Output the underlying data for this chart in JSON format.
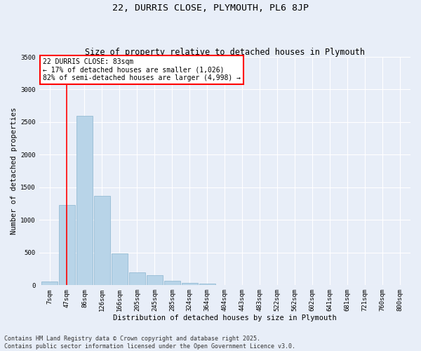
{
  "title_line1": "22, DURRIS CLOSE, PLYMOUTH, PL6 8JP",
  "title_line2": "Size of property relative to detached houses in Plymouth",
  "xlabel": "Distribution of detached houses by size in Plymouth",
  "ylabel": "Number of detached properties",
  "categories": [
    "7sqm",
    "47sqm",
    "86sqm",
    "126sqm",
    "166sqm",
    "205sqm",
    "245sqm",
    "285sqm",
    "324sqm",
    "364sqm",
    "404sqm",
    "443sqm",
    "483sqm",
    "522sqm",
    "562sqm",
    "602sqm",
    "641sqm",
    "681sqm",
    "721sqm",
    "760sqm",
    "800sqm"
  ],
  "values": [
    60,
    1230,
    2600,
    1370,
    490,
    200,
    155,
    70,
    40,
    20,
    5,
    0,
    0,
    0,
    0,
    0,
    0,
    0,
    0,
    0,
    0
  ],
  "bar_color": "#b8d4e8",
  "bar_edge_color": "#8ab4ce",
  "vline_color": "red",
  "vline_x_index": 1,
  "annotation_text": "22 DURRIS CLOSE: 83sqm\n← 17% of detached houses are smaller (1,026)\n82% of semi-detached houses are larger (4,998) →",
  "annotation_box_color": "white",
  "annotation_box_edge": "red",
  "ylim": [
    0,
    3500
  ],
  "yticks": [
    0,
    500,
    1000,
    1500,
    2000,
    2500,
    3000,
    3500
  ],
  "background_color": "#e8eef8",
  "grid_color": "#ffffff",
  "footer_line1": "Contains HM Land Registry data © Crown copyright and database right 2025.",
  "footer_line2": "Contains public sector information licensed under the Open Government Licence v3.0.",
  "title_fontsize": 9.5,
  "subtitle_fontsize": 8.5,
  "axis_label_fontsize": 7.5,
  "tick_fontsize": 6.5,
  "annotation_fontsize": 7,
  "footer_fontsize": 6
}
